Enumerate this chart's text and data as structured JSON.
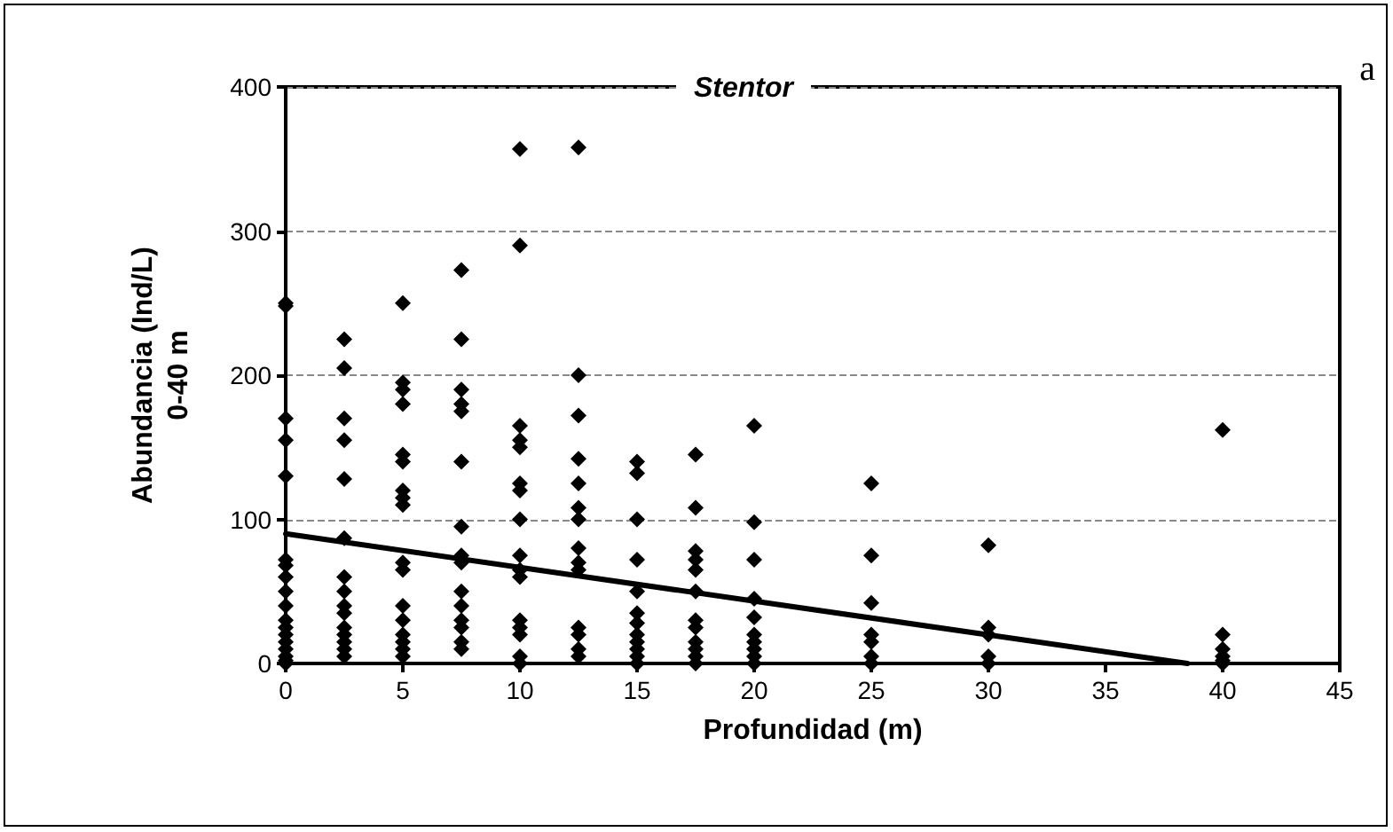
{
  "chart_data": {
    "type": "scatter",
    "title": "Stentor",
    "xlabel": "Profundidad (m)",
    "ylabel": "Abundancia (Ind/L)\n0-40 m",
    "annotations": [
      "a"
    ],
    "series": [
      {
        "color": "#000000",
        "marker": "diamond",
        "x": [
          0,
          0,
          0,
          0,
          0,
          0,
          0,
          0,
          0,
          0,
          0,
          0,
          0,
          0,
          0,
          0,
          0,
          0,
          2.5,
          2.5,
          2.5,
          2.5,
          2.5,
          2.5,
          2.5,
          2.5,
          2.5,
          2.5,
          2.5,
          2.5,
          2.5,
          2.5,
          2.5,
          5,
          5,
          5,
          5,
          5,
          5,
          5,
          5,
          5,
          5,
          5,
          5,
          5,
          5,
          5,
          5,
          5,
          7.5,
          7.5,
          7.5,
          7.5,
          7.5,
          7.5,
          7.5,
          7.5,
          7.5,
          7.5,
          7.5,
          7.5,
          7.5,
          7.5,
          7.5,
          10,
          10,
          10,
          10,
          10,
          10,
          10,
          10,
          10,
          10,
          10,
          10,
          10,
          10,
          10,
          10,
          12.5,
          12.5,
          12.5,
          12.5,
          12.5,
          12.5,
          12.5,
          12.5,
          12.5,
          12.5,
          12.5,
          12.5,
          12.5,
          12.5,
          15,
          15,
          15,
          15,
          15,
          15,
          15,
          15,
          15,
          15,
          15,
          15,
          17.5,
          17.5,
          17.5,
          17.5,
          17.5,
          17.5,
          17.5,
          17.5,
          17.5,
          17.5,
          17.5,
          17.5,
          20,
          20,
          20,
          20,
          20,
          20,
          20,
          20,
          20,
          20,
          25,
          25,
          25,
          25,
          25,
          25,
          25,
          30,
          30,
          30,
          30,
          30,
          40,
          40,
          40,
          40,
          40,
          40
        ],
        "values": [
          250,
          248,
          170,
          155,
          130,
          72,
          68,
          60,
          50,
          40,
          30,
          25,
          20,
          15,
          10,
          5,
          2,
          0,
          225,
          205,
          170,
          155,
          128,
          87,
          60,
          50,
          40,
          35,
          25,
          20,
          15,
          10,
          5,
          250,
          195,
          190,
          180,
          145,
          140,
          120,
          115,
          110,
          70,
          65,
          40,
          30,
          20,
          15,
          10,
          5,
          273,
          225,
          190,
          180,
          175,
          140,
          95,
          75,
          70,
          50,
          40,
          30,
          25,
          15,
          10,
          357,
          290,
          165,
          155,
          150,
          125,
          120,
          100,
          75,
          65,
          60,
          30,
          25,
          20,
          5,
          0,
          358,
          200,
          172,
          142,
          125,
          108,
          100,
          80,
          70,
          65,
          25,
          20,
          10,
          5,
          140,
          132,
          100,
          72,
          50,
          35,
          28,
          20,
          15,
          10,
          5,
          0,
          145,
          108,
          78,
          72,
          65,
          50,
          30,
          25,
          15,
          10,
          5,
          0,
          165,
          98,
          72,
          45,
          32,
          20,
          15,
          10,
          5,
          0,
          125,
          75,
          42,
          20,
          15,
          5,
          0,
          82,
          25,
          20,
          5,
          0,
          162,
          20,
          10,
          5,
          2,
          0
        ]
      },
      {
        "type": "line",
        "color": "#000000",
        "marker": "none",
        "line_style": "solid",
        "x": [
          0,
          38.5
        ],
        "values": [
          90,
          0
        ]
      }
    ],
    "xlim": [
      0,
      45
    ],
    "xticks": [
      0,
      5,
      10,
      15,
      20,
      25,
      30,
      35,
      40,
      45
    ],
    "ylim": [
      0,
      400
    ],
    "yticks": [
      0,
      100,
      200,
      300,
      400
    ],
    "grid": "y"
  }
}
